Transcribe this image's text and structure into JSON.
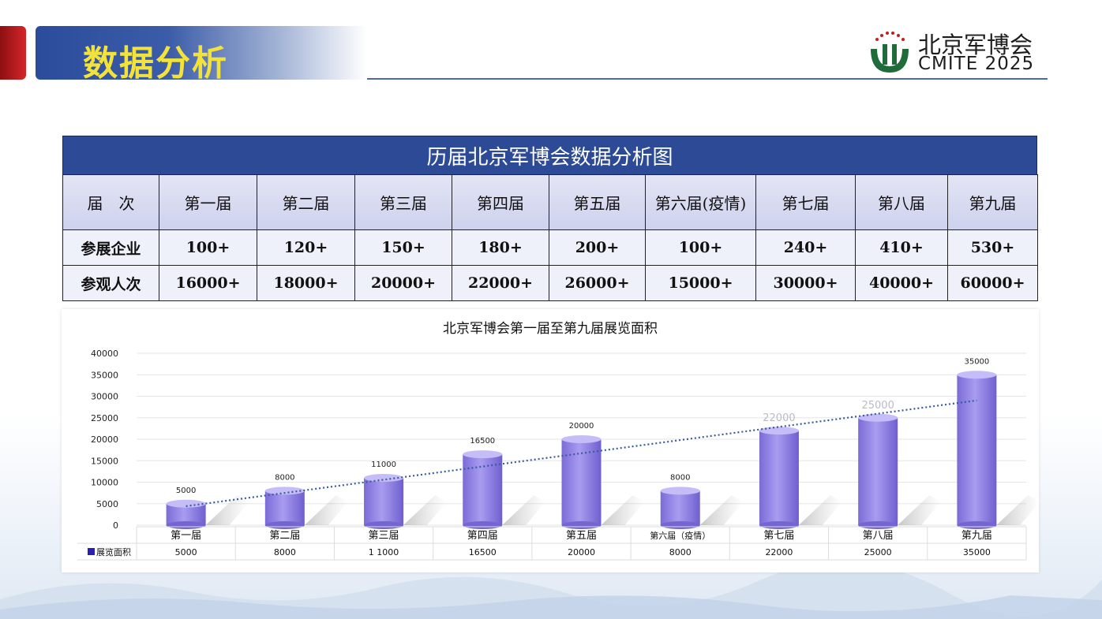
{
  "header": {
    "title": "数据分析",
    "logo_cn": "北京军博会",
    "logo_en": "CMITE  2025"
  },
  "table": {
    "title": "历届北京军博会数据分析图",
    "corner": "届　次",
    "columns": [
      "第一届",
      "第二届",
      "第三届",
      "第四届",
      "第五届",
      "第六届(疫情)",
      "第七届",
      "第八届",
      "第九届"
    ],
    "rows": [
      {
        "label": "参展企业",
        "values": [
          "100+",
          "120+",
          "150+",
          "180+",
          "200+",
          "100+",
          "240+",
          "410+",
          "530+"
        ]
      },
      {
        "label": "参观人次",
        "values": [
          "16000+",
          "18000+",
          "20000+",
          "22000+",
          "26000+",
          "15000+",
          "30000+",
          "40000+",
          "60000+"
        ]
      }
    ]
  },
  "chart_data": {
    "type": "bar",
    "title": "北京军博会第一届至第九届展览面积",
    "categories": [
      "第一届",
      "第二届",
      "第三届",
      "第四届",
      "第五届",
      "第六届（疫情）",
      "第七届",
      "第八届",
      "第九届"
    ],
    "series": [
      {
        "name": "展览面积",
        "values": [
          5000,
          8000,
          11000,
          16500,
          20000,
          8000,
          22000,
          25000,
          35000
        ],
        "color": "#8f80e0"
      }
    ],
    "value_labels": [
      "5000",
      "8000",
      "11000",
      "16500",
      "20000",
      "8000",
      "22000",
      "25000",
      "35000"
    ],
    "table_values": [
      "5000",
      "8000",
      "1 1000",
      "16500",
      "20000",
      "8000",
      "22000",
      "25000",
      "35000"
    ],
    "yticks": [
      "0",
      "5000",
      "10000",
      "15000",
      "20000",
      "25000",
      "30000",
      "35000",
      "40000"
    ],
    "ylim": [
      0,
      40000
    ],
    "trendline": "linear, dotted",
    "grid": true,
    "legend": "data-table"
  },
  "colors": {
    "title_bar": "#2c4a96",
    "title_text": "#f3e23a",
    "accent_red": "#c41e22",
    "bar": "#8f80e0",
    "trend": "#3a5aa0"
  }
}
